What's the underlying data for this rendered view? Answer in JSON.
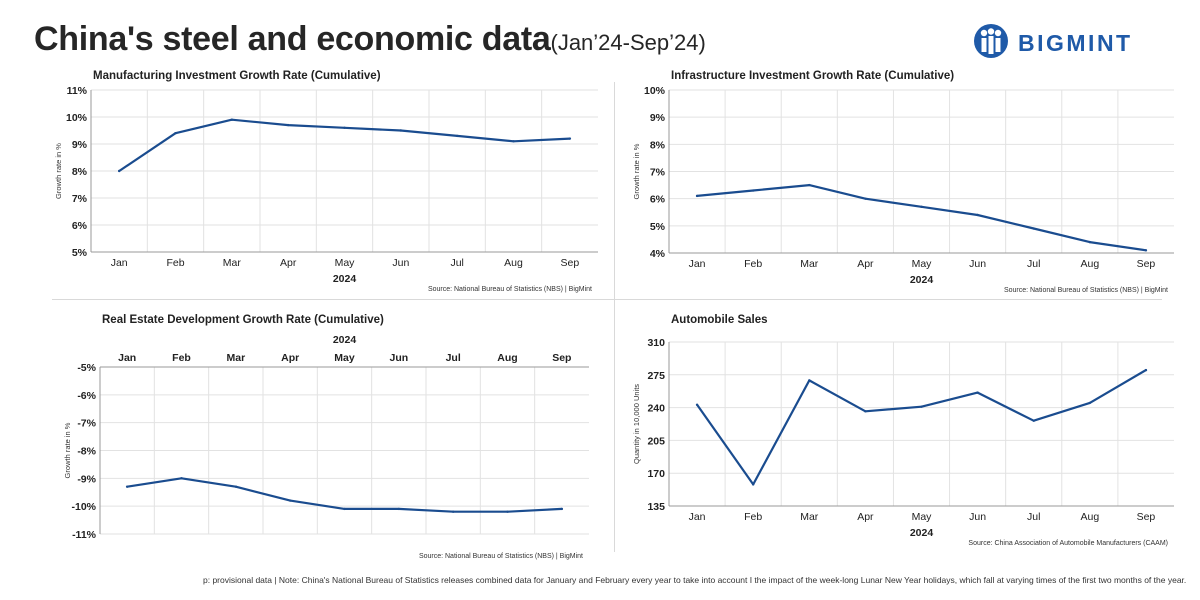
{
  "header": {
    "title": "China's steel and economic data",
    "subtitle": "(Jan’24-Sep’24)",
    "brand": "BIGMINT"
  },
  "colors": {
    "line": "#1a4c8f",
    "grid": "#e2e2e2",
    "axis": "#9a9a9a",
    "logo": "#1f5aa8"
  },
  "footnote": "p: provisional data | Note: China's National Bureau of Statistics releases combined data for January and February every year to take into account  I  the impact of the week-long Lunar New Year holidays, which fall at varying times of the first two months of the year.",
  "chart_data": [
    {
      "id": "manufacturing",
      "type": "line",
      "title": "Manufacturing Investment Growth Rate (Cumulative)",
      "categories": [
        "Jan",
        "Feb",
        "Mar",
        "Apr",
        "May",
        "Jun",
        "Jul",
        "Aug",
        "Sep"
      ],
      "series": [
        {
          "name": "Manufacturing",
          "values": [
            8.0,
            9.4,
            9.9,
            9.7,
            9.6,
            9.5,
            9.3,
            9.1,
            9.2
          ]
        }
      ],
      "xlabel": "2024",
      "ylabel": "Growth rate in %",
      "ylim": [
        5,
        11
      ],
      "yticks": [
        5,
        6,
        7,
        8,
        9,
        10,
        11
      ],
      "ytick_labels": [
        "5%",
        "6%",
        "7%",
        "8%",
        "9%",
        "10%",
        "11%"
      ],
      "x_axis_position": "bottom",
      "source": "Source: National Bureau of Statistics (NBS) | BigMint"
    },
    {
      "id": "infrastructure",
      "type": "line",
      "title": "Infrastructure Investment Growth Rate (Cumulative)",
      "categories": [
        "Jan",
        "Feb",
        "Mar",
        "Apr",
        "May",
        "Jun",
        "Jul",
        "Aug",
        "Sep"
      ],
      "series": [
        {
          "name": "Infrastructure",
          "values": [
            6.1,
            6.3,
            6.5,
            6.0,
            5.7,
            5.4,
            4.9,
            4.4,
            4.1
          ]
        }
      ],
      "xlabel": "2024",
      "ylabel": "Growth rate in %",
      "ylim": [
        4,
        10
      ],
      "yticks": [
        4,
        5,
        6,
        7,
        8,
        9,
        10
      ],
      "ytick_labels": [
        "4%",
        "5%",
        "6%",
        "7%",
        "8%",
        "9%",
        "10%"
      ],
      "x_axis_position": "bottom",
      "source": "Source: National Bureau of Statistics (NBS) | BigMint"
    },
    {
      "id": "real-estate",
      "type": "line",
      "title": "Real Estate Development Growth Rate (Cumulative)",
      "categories": [
        "Jan",
        "Feb",
        "Mar",
        "Apr",
        "May",
        "Jun",
        "Jul",
        "Aug",
        "Sep"
      ],
      "series": [
        {
          "name": "Real Estate",
          "values": [
            -9.3,
            -9.0,
            -9.3,
            -9.8,
            -10.1,
            -10.1,
            -10.2,
            -10.2,
            -10.1
          ]
        }
      ],
      "xlabel": "2024",
      "ylabel": "Growth rate in %",
      "ylim": [
        -11,
        -5
      ],
      "yticks": [
        -11,
        -10,
        -9,
        -8,
        -7,
        -6,
        -5
      ],
      "ytick_labels": [
        "-11%",
        "-10%",
        "-9%",
        "-8%",
        "-7%",
        "-6%",
        "-5%"
      ],
      "x_axis_position": "top",
      "source": "Source: National Bureau of Statistics (NBS) | BigMint"
    },
    {
      "id": "automobile",
      "type": "line",
      "title": "Automobile Sales",
      "categories": [
        "Jan",
        "Feb",
        "Mar",
        "Apr",
        "May",
        "Jun",
        "Jul",
        "Aug",
        "Sep"
      ],
      "series": [
        {
          "name": "Automobile Sales",
          "values": [
            243,
            158,
            269,
            236,
            241,
            256,
            226,
            245,
            280
          ]
        }
      ],
      "xlabel": "2024",
      "ylabel": "Quantity in 10,000 Units",
      "ylim": [
        135,
        310
      ],
      "yticks": [
        135,
        170,
        205,
        240,
        275,
        310
      ],
      "ytick_labels": [
        "135",
        "170",
        "205",
        "240",
        "275",
        "310"
      ],
      "x_axis_position": "bottom",
      "source": "Source: China Association of Automobile Manufacturers (CAAM)"
    }
  ]
}
